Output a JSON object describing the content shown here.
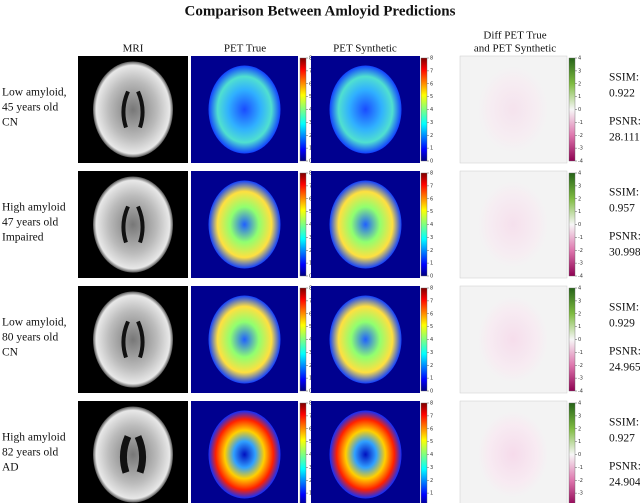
{
  "title": "Comparison Between Amloyid Predictions",
  "columns": [
    "MRI",
    "PET True",
    "PET Synthetic",
    [
      "Diff PET True",
      "and PET Synthetic"
    ]
  ],
  "colorbars": {
    "pet": {
      "ticks": [
        "0",
        "1",
        "2",
        "3",
        "4",
        "5",
        "6",
        "7",
        "8"
      ]
    },
    "diff": {
      "ticks": [
        "-4",
        "-3",
        "-2",
        "-1",
        "0",
        "1",
        "2",
        "3",
        "4"
      ]
    }
  },
  "metric_labels": {
    "ssim": "SSIM:",
    "psnr": "PSNR:"
  },
  "rows": [
    {
      "label": [
        "Low amyloid,",
        "45 years old",
        "CN"
      ],
      "ssim": "0.922",
      "psnr": "28.111"
    },
    {
      "label": [
        "High amyloid",
        "47 years old",
        "Impaired"
      ],
      "ssim": "0.957",
      "psnr": "30.998"
    },
    {
      "label": [
        "Low amyloid,",
        "80 years old",
        "CN"
      ],
      "ssim": "0.929",
      "psnr": "24.965"
    },
    {
      "label": [
        "High amyloid",
        "82 years old",
        "AD"
      ],
      "ssim": "0.927",
      "psnr": "24.904"
    }
  ]
}
